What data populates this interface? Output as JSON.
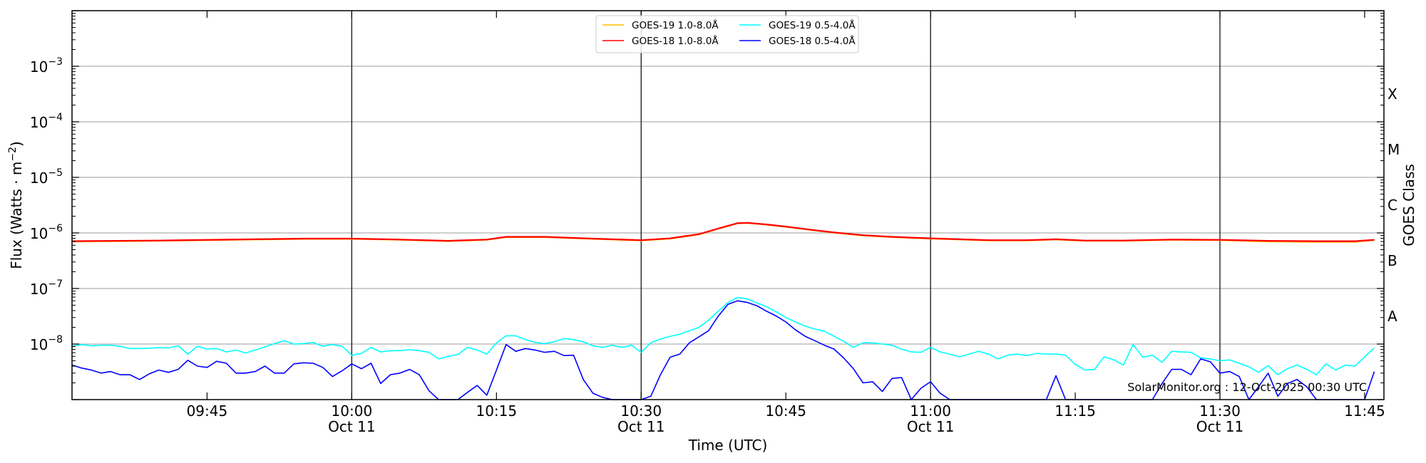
{
  "chart_data": {
    "type": "line",
    "xlabel": "Time (UTC)",
    "ylabel": {
      "text": "Flux (Watts · m",
      "sup": "−2",
      "suffix": ")"
    },
    "right_label": "GOES Class",
    "xlim": [
      "09:31",
      "11:47"
    ],
    "ylim": [
      1e-09,
      0.01
    ],
    "yscale": "log",
    "grid": {
      "horizontal": true,
      "vertical_lines_at": [
        "10:00",
        "10:30",
        "11:00",
        "11:30"
      ]
    },
    "legend_placement": "top-center",
    "x_ticks": [
      {
        "time": "09:45",
        "label": "09:45",
        "date": ""
      },
      {
        "time": "10:00",
        "label": "10:00",
        "date": "Oct 11"
      },
      {
        "time": "10:15",
        "label": "10:15",
        "date": ""
      },
      {
        "time": "10:30",
        "label": "10:30",
        "date": "Oct 11"
      },
      {
        "time": "10:45",
        "label": "10:45",
        "date": ""
      },
      {
        "time": "11:00",
        "label": "11:00",
        "date": "Oct 11"
      },
      {
        "time": "11:15",
        "label": "11:15",
        "date": ""
      },
      {
        "time": "11:30",
        "label": "11:30",
        "date": "Oct 11"
      },
      {
        "time": "11:45",
        "label": "11:45",
        "date": ""
      }
    ],
    "y_ticks": [
      {
        "value": 0.001,
        "base": "10",
        "exp": "−3"
      },
      {
        "value": 0.0001,
        "base": "10",
        "exp": "−4"
      },
      {
        "value": 1e-05,
        "base": "10",
        "exp": "−5"
      },
      {
        "value": 1e-06,
        "base": "10",
        "exp": "−6"
      },
      {
        "value": 1e-07,
        "base": "10",
        "exp": "−7"
      },
      {
        "value": 1e-08,
        "base": "10",
        "exp": "−8"
      }
    ],
    "goes_classes": [
      {
        "label": "X",
        "value": 0.000316
      },
      {
        "label": "M",
        "value": 3.16e-05
      },
      {
        "label": "C",
        "value": 3.16e-06
      },
      {
        "label": "B",
        "value": 3.16e-07
      },
      {
        "label": "A",
        "value": 3.16e-08
      }
    ],
    "annotation": "SolarMonitor.org : 12-Oct-2025 00:30 UTC",
    "long_x": [
      "09:31",
      "09:40",
      "09:50",
      "09:55",
      "10:00",
      "10:05",
      "10:10",
      "10:14",
      "10:16",
      "10:20",
      "10:25",
      "10:30",
      "10:33",
      "10:36",
      "10:38",
      "10:40",
      "10:41",
      "10:43",
      "10:45",
      "10:48",
      "10:50",
      "10:53",
      "10:56",
      "11:00",
      "11:03",
      "11:06",
      "11:10",
      "11:13",
      "11:16",
      "11:20",
      "11:25",
      "11:30",
      "11:35",
      "11:40",
      "11:44",
      "11:46"
    ],
    "short_x": [
      "09:31",
      "09:32",
      "09:33",
      "09:34",
      "09:35",
      "09:36",
      "09:37",
      "09:38",
      "09:39",
      "09:40",
      "09:41",
      "09:42",
      "09:43",
      "09:44",
      "09:45",
      "09:46",
      "09:47",
      "09:48",
      "09:49",
      "09:50",
      "09:51",
      "09:52",
      "09:53",
      "09:54",
      "09:55",
      "09:56",
      "09:57",
      "09:58",
      "09:59",
      "10:00",
      "10:01",
      "10:02",
      "10:03",
      "10:04",
      "10:05",
      "10:06",
      "10:07",
      "10:08",
      "10:09",
      "10:10",
      "10:11",
      "10:12",
      "10:13",
      "10:14",
      "10:15",
      "10:16",
      "10:17",
      "10:18",
      "10:19",
      "10:20",
      "10:21",
      "10:22",
      "10:23",
      "10:24",
      "10:25",
      "10:26",
      "10:27",
      "10:28",
      "10:29",
      "10:30",
      "10:31",
      "10:32",
      "10:33",
      "10:34",
      "10:35",
      "10:36",
      "10:37",
      "10:38",
      "10:39",
      "10:40",
      "10:41",
      "10:42",
      "10:43",
      "10:44",
      "10:45",
      "10:46",
      "10:47",
      "10:48",
      "10:49",
      "10:50",
      "10:51",
      "10:52",
      "10:53",
      "10:54",
      "10:55",
      "10:56",
      "10:57",
      "10:58",
      "10:59",
      "11:00",
      "11:01",
      "11:02",
      "11:03",
      "11:04",
      "11:05",
      "11:06",
      "11:07",
      "11:08",
      "11:09",
      "11:10",
      "11:11",
      "11:12",
      "11:13",
      "11:14",
      "11:15",
      "11:16",
      "11:17",
      "11:18",
      "11:19",
      "11:20",
      "11:21",
      "11:22",
      "11:23",
      "11:24",
      "11:25",
      "11:26",
      "11:27",
      "11:28",
      "11:29",
      "11:30",
      "11:31",
      "11:32",
      "11:33",
      "11:34",
      "11:35",
      "11:36",
      "11:37",
      "11:38",
      "11:39",
      "11:40",
      "11:41",
      "11:42",
      "11:43",
      "11:44",
      "11:45",
      "11:46"
    ],
    "series": [
      {
        "name": "GOES-19 1.0-8.0Å",
        "color": "#ffc000",
        "x_key": "long_x",
        "values": [
          7e-07,
          7.2e-07,
          7.6e-07,
          7.8e-07,
          7.8e-07,
          7.5e-07,
          7.1e-07,
          7.5e-07,
          8.4e-07,
          8.4e-07,
          7.8e-07,
          7.3e-07,
          7.9e-07,
          9.4e-07,
          1.19e-06,
          1.49e-06,
          1.51e-06,
          1.41e-06,
          1.29e-06,
          1.11e-06,
          1.01e-06,
          9e-07,
          8.4e-07,
          7.9e-07,
          7.6e-07,
          7.3e-07,
          7.3e-07,
          7.6e-07,
          7.2e-07,
          7.2e-07,
          7.5e-07,
          7.4e-07,
          7e-07,
          6.9e-07,
          6.9e-07,
          7.4e-07
        ]
      },
      {
        "name": "GOES-18 1.0-8.0Å",
        "color": "#ff0000",
        "x_key": "long_x",
        "values": [
          7.1e-07,
          7.3e-07,
          7.7e-07,
          7.9e-07,
          7.9e-07,
          7.6e-07,
          7.2e-07,
          7.6e-07,
          8.5e-07,
          8.5e-07,
          7.9e-07,
          7.4e-07,
          8e-07,
          9.5e-07,
          1.2e-06,
          1.5e-06,
          1.52e-06,
          1.42e-06,
          1.3e-06,
          1.12e-06,
          1.02e-06,
          9.1e-07,
          8.5e-07,
          8e-07,
          7.7e-07,
          7.4e-07,
          7.4e-07,
          7.7e-07,
          7.3e-07,
          7.3e-07,
          7.6e-07,
          7.5e-07,
          7.2e-07,
          7.1e-07,
          7.1e-07,
          7.5e-07
        ]
      },
      {
        "name": "GOES-19 0.5-4.0Å",
        "color": "#00ffff",
        "x_key": "short_x",
        "values": [
          9.1e-09,
          9.8e-09,
          9.3e-09,
          9.5e-09,
          9.5e-09,
          9.1e-09,
          8.3e-09,
          8.3e-09,
          8.4e-09,
          8.6e-09,
          8.5e-09,
          9.3e-09,
          6.6e-09,
          9.1e-09,
          8.1e-09,
          8.3e-09,
          7.2e-09,
          7.8e-09,
          6.9e-09,
          7.8e-09,
          8.9e-09,
          1.02e-08,
          1.15e-08,
          1e-08,
          1.02e-08,
          1.07e-08,
          9.1e-09,
          9.8e-09,
          9.1e-09,
          6.3e-09,
          6.8e-09,
          8.7e-09,
          7.2e-09,
          7.6e-09,
          7.6e-09,
          7.9e-09,
          7.6e-09,
          7.1e-09,
          5.4e-09,
          6e-09,
          6.5e-09,
          8.7e-09,
          7.8e-09,
          6.6e-09,
          1.05e-08,
          1.41e-08,
          1.41e-08,
          1.2e-08,
          1.07e-08,
          1.02e-08,
          1.1e-08,
          1.26e-08,
          1.2e-08,
          1.1e-08,
          9.3e-09,
          8.7e-09,
          9.5e-09,
          8.7e-09,
          9.5e-09,
          7.1e-09,
          1.05e-08,
          1.23e-08,
          1.38e-08,
          1.5e-08,
          1.74e-08,
          2e-08,
          2.7e-08,
          3.9e-08,
          5.6e-08,
          6.9e-08,
          6.5e-08,
          5.5e-08,
          4.7e-08,
          3.8e-08,
          3e-08,
          2.5e-08,
          2.1e-08,
          1.86e-08,
          1.7e-08,
          1.38e-08,
          1.12e-08,
          8.7e-09,
          1.05e-08,
          1.05e-08,
          1e-08,
          9.5e-09,
          8.1e-09,
          7.2e-09,
          7.1e-09,
          8.7e-09,
          7.2e-09,
          6.6e-09,
          5.9e-09,
          6.6e-09,
          7.4e-09,
          6.6e-09,
          5.4e-09,
          6.3e-09,
          6.6e-09,
          6.2e-09,
          6.8e-09,
          6.6e-09,
          6.6e-09,
          6.3e-09,
          4.3e-09,
          3.4e-09,
          3.5e-09,
          5.9e-09,
          5.2e-09,
          4.2e-09,
          9.8e-09,
          5.8e-09,
          6.3e-09,
          4.7e-09,
          7.4e-09,
          7.2e-09,
          7.1e-09,
          5.6e-09,
          5.4e-09,
          5e-09,
          5.2e-09,
          4.5e-09,
          3.9e-09,
          3.1e-09,
          4.1e-09,
          2.8e-09,
          3.6e-09,
          4.2e-09,
          3.5e-09,
          2.8e-09,
          4.4e-09,
          3.4e-09,
          4.2e-09,
          4e-09,
          5.9e-09,
          8.5e-09
        ]
      },
      {
        "name": "GOES-18 0.5-4.0Å",
        "color": "#0000ff",
        "x_key": "short_x",
        "values": [
          4.2e-09,
          3.7e-09,
          3.4e-09,
          3e-09,
          3.2e-09,
          2.8e-09,
          2.8e-09,
          2.3e-09,
          2.9e-09,
          3.4e-09,
          3.1e-09,
          3.5e-09,
          5.1e-09,
          4e-09,
          3.8e-09,
          4.9e-09,
          4.5e-09,
          3e-09,
          3e-09,
          3.2e-09,
          4e-09,
          3e-09,
          3e-09,
          4.4e-09,
          4.6e-09,
          4.5e-09,
          3.8e-09,
          2.6e-09,
          3.3e-09,
          4.4e-09,
          3.6e-09,
          4.5e-09,
          1.95e-09,
          2.8e-09,
          3e-09,
          3.5e-09,
          2.8e-09,
          1.45e-09,
          1e-09,
          1e-09,
          1e-09,
          1.35e-09,
          1.8e-09,
          1.2e-09,
          3.4e-09,
          9.8e-09,
          7.4e-09,
          8.3e-09,
          7.8e-09,
          7.1e-09,
          7.4e-09,
          6.2e-09,
          6.3e-09,
          2.3e-09,
          1.3e-09,
          1.1e-09,
          1e-09,
          1e-09,
          1e-09,
          1e-09,
          1.15e-09,
          2.8e-09,
          5.8e-09,
          6.6e-09,
          1.05e-08,
          1.35e-08,
          1.74e-08,
          3.2e-08,
          5.2e-08,
          6e-08,
          5.6e-08,
          4.9e-08,
          3.9e-08,
          3.2e-08,
          2.5e-08,
          1.8e-08,
          1.38e-08,
          1.15e-08,
          9.5e-09,
          8.1e-09,
          5.6e-09,
          3.6e-09,
          2e-09,
          2.1e-09,
          1.4e-09,
          2.4e-09,
          2.5e-09,
          1e-09,
          1.6e-09,
          2.1e-09,
          1.3e-09,
          1e-09,
          1e-09,
          1e-09,
          1e-09,
          1e-09,
          1e-09,
          1e-09,
          1e-09,
          1e-09,
          1e-09,
          1e-09,
          2.7e-09,
          1e-09,
          1e-09,
          1e-09,
          1e-09,
          1e-09,
          1e-09,
          1e-09,
          1e-09,
          1e-09,
          1e-09,
          1.95e-09,
          3.5e-09,
          3.5e-09,
          2.8e-09,
          5.4e-09,
          4.8e-09,
          3e-09,
          3.2e-09,
          2.6e-09,
          1e-09,
          1.7e-09,
          3e-09,
          1.15e-09,
          1.95e-09,
          2.3e-09,
          1.7e-09,
          1e-09,
          1e-09,
          1e-09,
          1e-09,
          1e-09,
          1e-09,
          3.2e-09
        ]
      }
    ]
  }
}
